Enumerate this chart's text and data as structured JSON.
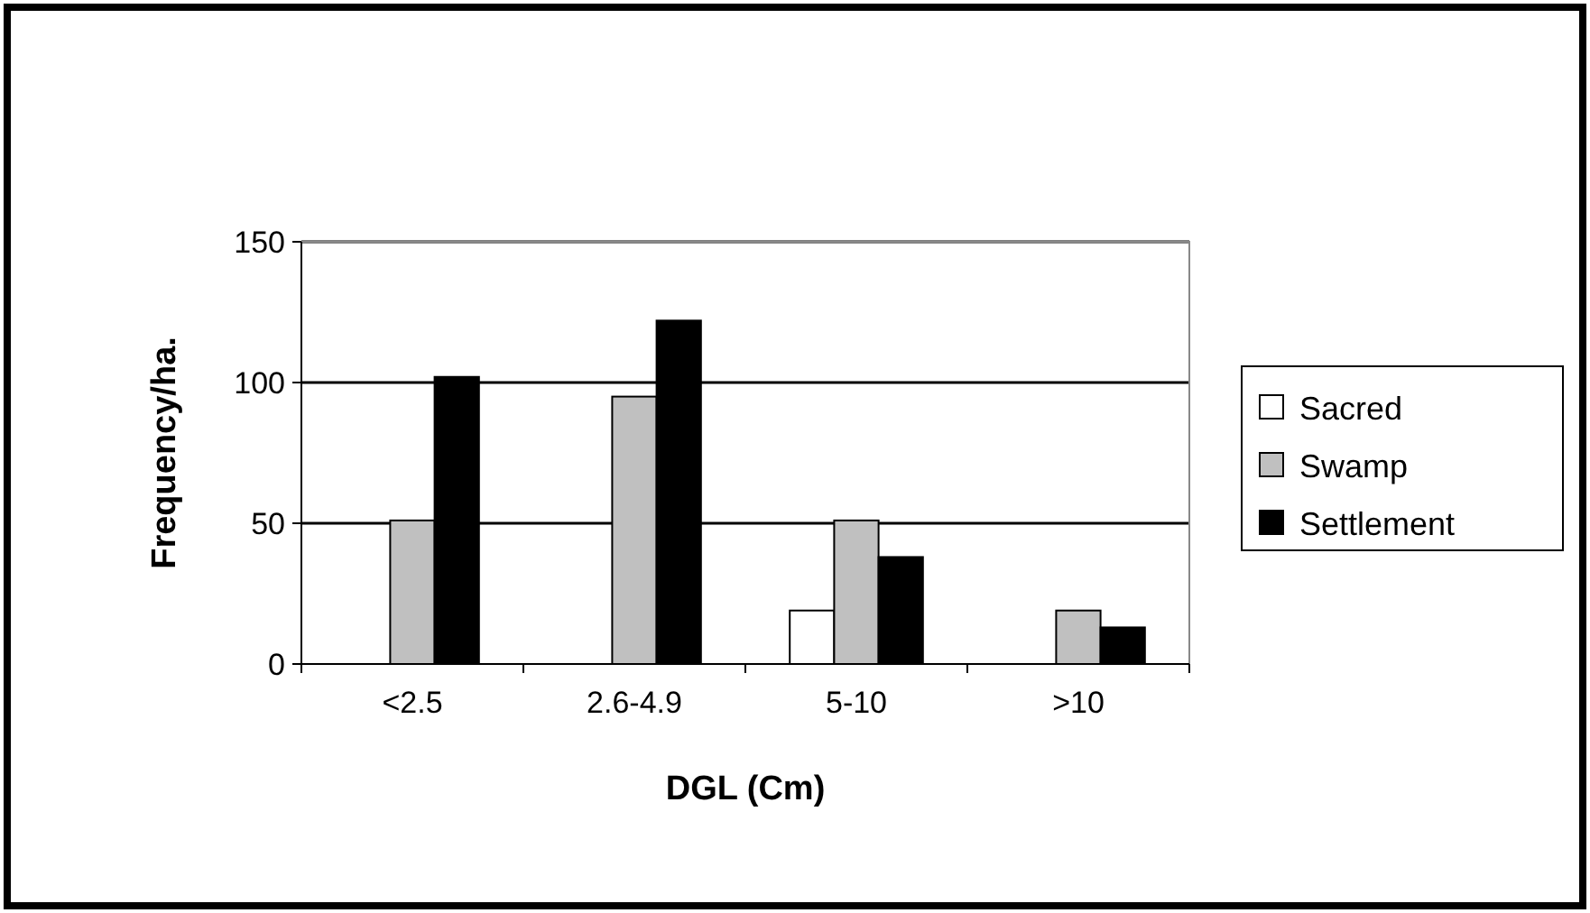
{
  "chart_data": {
    "type": "bar",
    "xlabel": "DGL (Cm)",
    "ylabel": "Frequency/ha.",
    "categories": [
      "<2.5",
      "2.6-4.9",
      "5-10",
      ">10"
    ],
    "series": [
      {
        "name": "Sacred",
        "color": "#ffffff",
        "values": [
          0,
          0,
          19,
          0
        ]
      },
      {
        "name": "Swamp",
        "color": "#c0c0c0",
        "values": [
          51,
          95,
          51,
          19
        ]
      },
      {
        "name": "Settlement",
        "color": "#000000",
        "values": [
          102,
          122,
          38,
          13
        ]
      }
    ],
    "ylim": [
      0,
      150
    ],
    "yticks": [
      0,
      50,
      100,
      150
    ],
    "grid": "y",
    "legend": "right"
  }
}
